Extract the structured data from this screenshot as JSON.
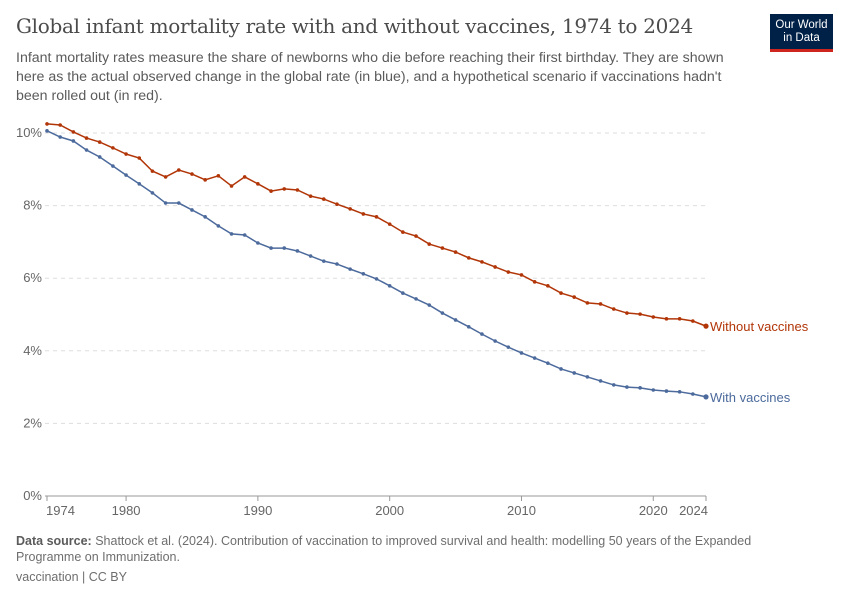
{
  "title": "Global infant mortality rate with and without vaccines, 1974 to 2024",
  "subtitle": "Infant mortality rates measure the share of newborns who die before reaching their first birthday. They are shown here as the actual observed change in the global rate (in blue), and a hypothetical scenario if vaccinations hadn't been rolled out (in red).",
  "logo": "Our World in Data",
  "footer": {
    "source_label": "Data source:",
    "source_text": "Shattock et al. (2024). Contribution of vaccination to improved survival and health: modelling 50 years of the Expanded Programme on Immunization.",
    "license": "vaccination | CC BY"
  },
  "chart_data": {
    "type": "line",
    "title": "Global infant mortality rate with and without vaccines, 1974 to 2024",
    "xlim": [
      1974,
      2024
    ],
    "ylim": [
      0,
      10
    ],
    "x_ticks": [
      1974,
      1980,
      1990,
      2000,
      2010,
      2020,
      2024
    ],
    "y_ticks": [
      0,
      2,
      4,
      6,
      8,
      10
    ],
    "y_tick_labels": [
      "0%",
      "2%",
      "4%",
      "6%",
      "8%",
      "10%"
    ],
    "grid": "horizontal dashed",
    "legend": "inline labels at line ends (right)",
    "x": [
      1974,
      1975,
      1976,
      1977,
      1978,
      1979,
      1980,
      1981,
      1982,
      1983,
      1984,
      1985,
      1986,
      1987,
      1988,
      1989,
      1990,
      1991,
      1992,
      1993,
      1994,
      1995,
      1996,
      1997,
      1998,
      1999,
      2000,
      2001,
      2002,
      2003,
      2004,
      2005,
      2006,
      2007,
      2008,
      2009,
      2010,
      2011,
      2012,
      2013,
      2014,
      2015,
      2016,
      2017,
      2018,
      2019,
      2020,
      2021,
      2022,
      2023,
      2024
    ],
    "series": [
      {
        "name": "Without vaccines",
        "color": "#b13507",
        "values": [
          10.25,
          10.22,
          10.03,
          9.86,
          9.75,
          9.59,
          9.42,
          9.31,
          8.95,
          8.79,
          8.98,
          8.87,
          8.71,
          8.82,
          8.54,
          8.79,
          8.6,
          8.4,
          8.46,
          8.43,
          8.26,
          8.18,
          8.04,
          7.91,
          7.77,
          7.69,
          7.49,
          7.27,
          7.16,
          6.94,
          6.83,
          6.72,
          6.56,
          6.45,
          6.31,
          6.17,
          6.09,
          5.9,
          5.79,
          5.59,
          5.48,
          5.32,
          5.29,
          5.15,
          5.04,
          5.01,
          4.93,
          4.88,
          4.88,
          4.82,
          4.68
        ]
      },
      {
        "name": "With vaccines",
        "color": "#4c6a9c",
        "values": [
          10.06,
          9.89,
          9.78,
          9.53,
          9.34,
          9.09,
          8.84,
          8.6,
          8.35,
          8.07,
          8.07,
          7.88,
          7.69,
          7.44,
          7.22,
          7.19,
          6.97,
          6.83,
          6.83,
          6.75,
          6.61,
          6.47,
          6.39,
          6.25,
          6.12,
          5.98,
          5.79,
          5.59,
          5.43,
          5.26,
          5.04,
          4.85,
          4.66,
          4.46,
          4.27,
          4.1,
          3.94,
          3.8,
          3.66,
          3.5,
          3.39,
          3.28,
          3.17,
          3.06,
          3.0,
          2.98,
          2.92,
          2.89,
          2.87,
          2.81,
          2.73
        ]
      }
    ]
  }
}
